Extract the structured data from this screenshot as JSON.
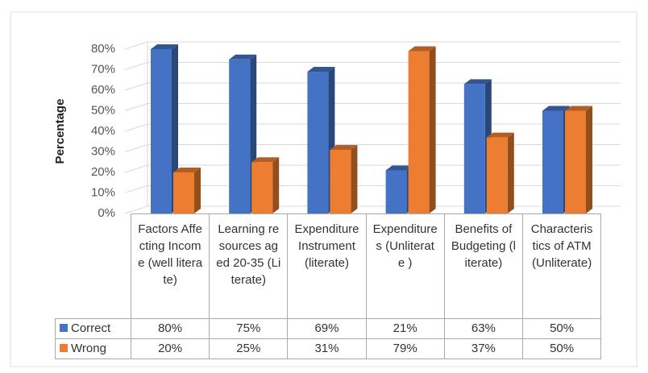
{
  "chart_data": {
    "type": "bar3d",
    "ylabel": "Percentage",
    "categories": [
      "Factors Affecting Income (well literate)",
      "Learning resources aged 20-35 (Literate)",
      "Expenditure Instrument (literate)",
      "Expenditures (Unliterate )",
      "Benefits of Budgeting (literate)",
      "Characteristics of ATM (Unliterate)"
    ],
    "series": [
      {
        "name": "Correct",
        "color": "#4472c4",
        "values": [
          80,
          75,
          69,
          21,
          63,
          50
        ],
        "value_labels": [
          "80%",
          "75%",
          "69%",
          "21%",
          "63%",
          "50%"
        ]
      },
      {
        "name": "Wrong",
        "color": "#ed7d31",
        "values": [
          20,
          25,
          31,
          79,
          37,
          50
        ],
        "value_labels": [
          "20%",
          "25%",
          "31%",
          "79%",
          "37%",
          "50%"
        ]
      }
    ],
    "ylim": [
      0,
      80
    ],
    "yticks": [
      {
        "value": 0,
        "label": "0%"
      },
      {
        "value": 10,
        "label": "10%"
      },
      {
        "value": 20,
        "label": "20%"
      },
      {
        "value": 30,
        "label": "30%"
      },
      {
        "value": 40,
        "label": "40%"
      },
      {
        "value": 50,
        "label": "50%"
      },
      {
        "value": 60,
        "label": "60%"
      },
      {
        "value": 70,
        "label": "70%"
      },
      {
        "value": 80,
        "label": "80%"
      }
    ],
    "grid": true
  }
}
